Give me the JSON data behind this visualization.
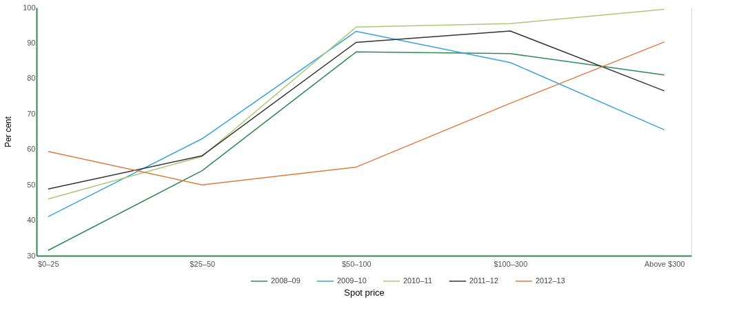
{
  "chart_data": {
    "type": "line",
    "xlabel": "Spot price",
    "ylabel": "Per cent",
    "categories": [
      "$0–25",
      "$25–50",
      "$50–100",
      "$100–300",
      "Above $300"
    ],
    "series": [
      {
        "name": "2008–09",
        "color": "#2f8a50",
        "values": [
          31.5,
          54,
          87.5,
          87,
          81
        ]
      },
      {
        "name": "2009–10",
        "color": "#3aa3dc",
        "values": [
          41,
          63,
          93.3,
          84.5,
          65.5
        ]
      },
      {
        "name": "2010–11",
        "color": "#a9c978",
        "values": [
          46,
          58,
          94.5,
          95.5,
          99.5
        ]
      },
      {
        "name": "2011–12",
        "color": "#333333",
        "values": [
          48.8,
          58.2,
          90.2,
          93.4,
          76.5
        ]
      },
      {
        "name": "2012–13",
        "color": "#e07a40",
        "values": [
          59.4,
          50,
          55,
          73,
          90.3
        ]
      }
    ],
    "ylim": [
      30,
      100
    ],
    "yticks": [
      30,
      40,
      50,
      60,
      70,
      80,
      90,
      100
    ],
    "grid": "y",
    "legend": "bottom",
    "marker": "none",
    "line_style": "solid"
  }
}
